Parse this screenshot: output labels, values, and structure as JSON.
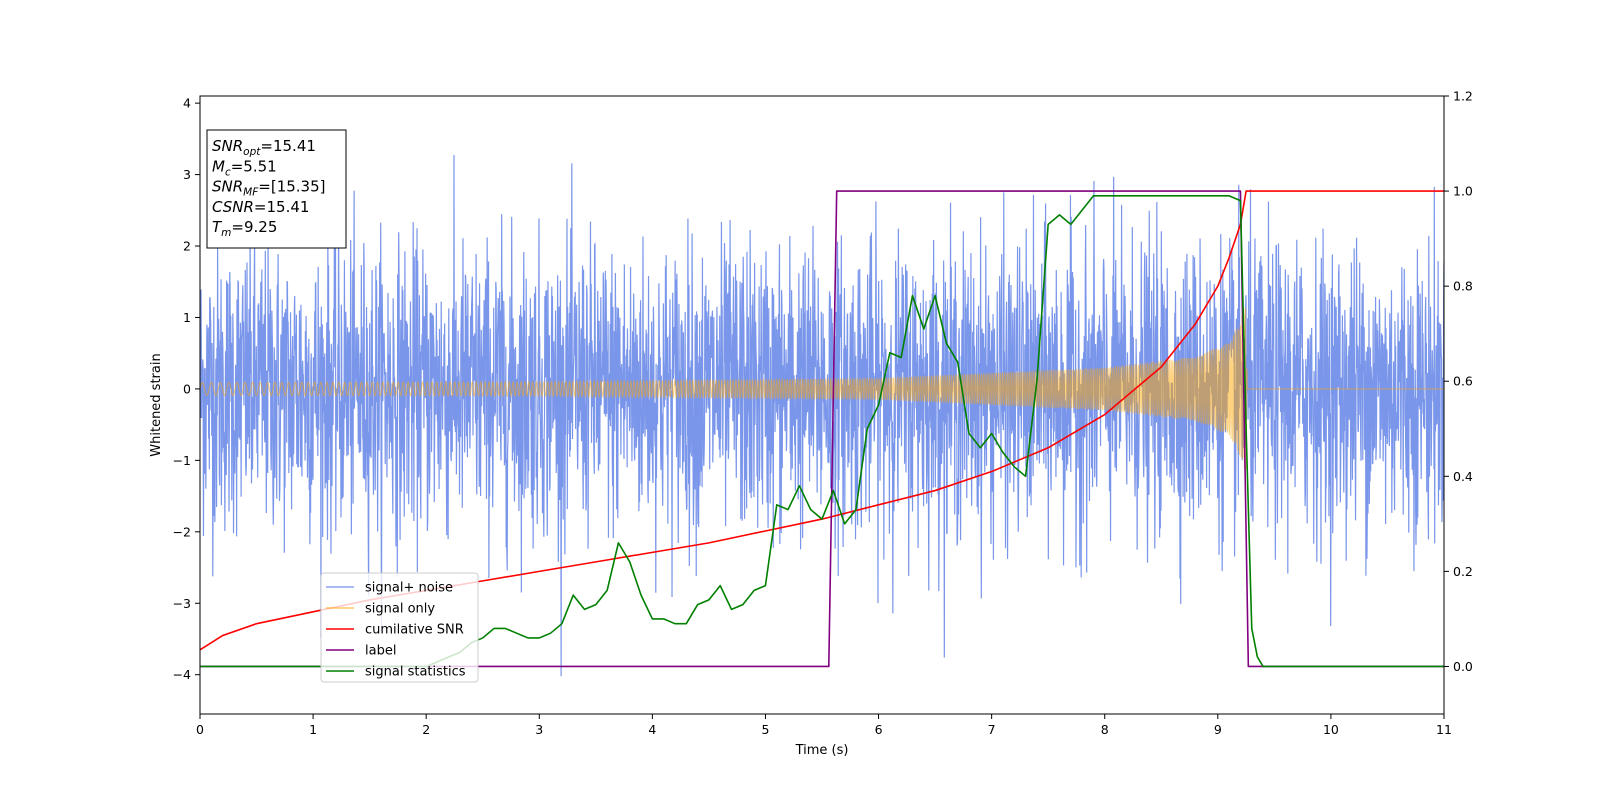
{
  "chart_data": {
    "type": "line",
    "xlabel": "Time (s)",
    "ylabel": "Whitened strain",
    "xlim": [
      0,
      11
    ],
    "ylim": [
      -4.55,
      4.1
    ],
    "y2lim": [
      -0.1,
      1.2
    ],
    "x_ticks": [
      "0",
      "1",
      "2",
      "3",
      "4",
      "5",
      "6",
      "7",
      "8",
      "9",
      "10",
      "11"
    ],
    "y_ticks": [
      "−4",
      "−3",
      "−2",
      "−1",
      "0",
      "1",
      "2",
      "3",
      "4"
    ],
    "y2_ticks": [
      "0.0",
      "0.2",
      "0.4",
      "0.6",
      "0.8",
      "1.0",
      "1.2"
    ],
    "grid": false,
    "legend_position": "lower-left",
    "info_box": [
      {
        "main": "SNR",
        "sub": "opt",
        "value": "=15.41"
      },
      {
        "main": "M",
        "sub": "c",
        "value": "=5.51"
      },
      {
        "main": "SNR",
        "sub": "MF",
        "value": "=[15.35]"
      },
      {
        "main": "CSNR",
        "sub": "",
        "value": "=15.41"
      },
      {
        "main": "T",
        "sub": "m",
        "value": "=9.25"
      }
    ],
    "series": [
      {
        "name": "signal+ noise",
        "color": "#4169e1",
        "axis": "left",
        "noise_amplitude_approx": 1.0,
        "x_range": [
          0,
          11
        ]
      },
      {
        "name": "signal only",
        "color": "#ffa500",
        "axis": "left",
        "envelope": {
          "x": [
            0,
            3,
            6,
            8,
            8.8,
            9.1,
            9.2,
            9.25,
            9.26,
            11
          ],
          "amp": [
            0.09,
            0.1,
            0.15,
            0.3,
            0.45,
            0.65,
            0.95,
            1.25,
            0,
            0
          ]
        }
      },
      {
        "name": "cumilative SNR",
        "color": "#ff0000",
        "axis": "right",
        "x": [
          0,
          0.2,
          0.5,
          1,
          1.5,
          2,
          2.5,
          3,
          3.5,
          4,
          4.5,
          5,
          5.5,
          6,
          6.5,
          7,
          7.5,
          8,
          8.5,
          8.8,
          9.0,
          9.1,
          9.2,
          9.25,
          11
        ],
        "y": [
          0.035,
          0.065,
          0.09,
          0.115,
          0.14,
          0.16,
          0.18,
          0.2,
          0.22,
          0.24,
          0.26,
          0.285,
          0.31,
          0.34,
          0.37,
          0.41,
          0.46,
          0.53,
          0.63,
          0.72,
          0.8,
          0.86,
          0.93,
          1.0,
          1.0
        ]
      },
      {
        "name": "label",
        "color": "#800080",
        "axis": "right",
        "x": [
          0,
          5.56,
          5.63,
          9.2,
          9.27,
          11
        ],
        "y": [
          0,
          0,
          1,
          1,
          0,
          0
        ]
      },
      {
        "name": "signal statistics",
        "color": "#008000",
        "axis": "right",
        "x": [
          0,
          2.0,
          2.1,
          2.2,
          2.3,
          2.4,
          2.5,
          2.6,
          2.7,
          2.8,
          2.9,
          3.0,
          3.1,
          3.2,
          3.3,
          3.4,
          3.5,
          3.6,
          3.7,
          3.8,
          3.9,
          4.0,
          4.1,
          4.2,
          4.3,
          4.4,
          4.5,
          4.6,
          4.7,
          4.8,
          4.9,
          5.0,
          5.1,
          5.2,
          5.3,
          5.4,
          5.5,
          5.6,
          5.7,
          5.8,
          5.9,
          6.0,
          6.1,
          6.2,
          6.3,
          6.4,
          6.5,
          6.6,
          6.7,
          6.8,
          6.9,
          7.0,
          7.1,
          7.2,
          7.3,
          7.4,
          7.5,
          7.6,
          7.7,
          7.8,
          7.9,
          8.0,
          8.5,
          9.0,
          9.1,
          9.2,
          9.25,
          9.3,
          9.35,
          9.4,
          9.5,
          11
        ],
        "y": [
          0.0,
          0.0,
          0.01,
          0.02,
          0.03,
          0.05,
          0.06,
          0.08,
          0.08,
          0.07,
          0.06,
          0.06,
          0.07,
          0.09,
          0.15,
          0.12,
          0.13,
          0.16,
          0.26,
          0.22,
          0.15,
          0.1,
          0.1,
          0.09,
          0.09,
          0.13,
          0.14,
          0.17,
          0.12,
          0.13,
          0.16,
          0.17,
          0.34,
          0.33,
          0.38,
          0.33,
          0.31,
          0.37,
          0.3,
          0.33,
          0.5,
          0.55,
          0.66,
          0.65,
          0.78,
          0.71,
          0.78,
          0.68,
          0.64,
          0.49,
          0.46,
          0.49,
          0.45,
          0.42,
          0.4,
          0.6,
          0.93,
          0.95,
          0.93,
          0.96,
          0.99,
          0.99,
          0.99,
          0.99,
          0.99,
          0.98,
          0.5,
          0.08,
          0.02,
          0.0,
          0.0,
          0.0
        ]
      }
    ]
  }
}
